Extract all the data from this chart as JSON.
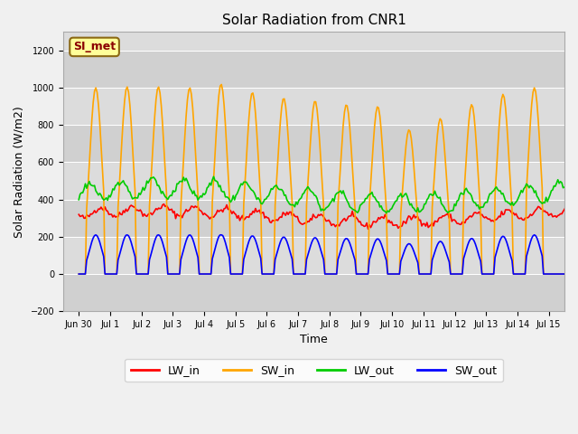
{
  "title": "Solar Radiation from CNR1",
  "xlabel": "Time",
  "ylabel": "Solar Radiation (W/m2)",
  "ylim": [
    -200,
    1300
  ],
  "yticks": [
    -200,
    0,
    200,
    400,
    600,
    800,
    1000,
    1200
  ],
  "annotation_text": "SI_met",
  "annotation_color": "#8B0000",
  "annotation_bg": "#FFFF99",
  "annotation_border": "#8B6914",
  "colors": {
    "LW_in": "#FF0000",
    "SW_in": "#FFA500",
    "LW_out": "#00CC00",
    "SW_out": "#0000FF"
  },
  "fig_bg_color": "#F0F0F0",
  "plot_bg": "#DCDCDC",
  "n_days": 16,
  "xlim": [
    -0.5,
    15.5
  ]
}
